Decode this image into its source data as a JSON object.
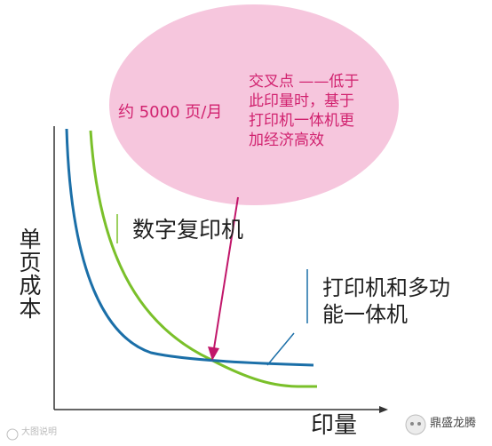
{
  "annotation": {
    "volume_label": "约 5000 页/月",
    "crossover_lines": [
      "交叉点 ——低于",
      "此印量时，基于",
      "打印机一体机更",
      "加经济高效"
    ]
  },
  "axes": {
    "y_label": "单页成本",
    "x_label": "印量"
  },
  "series_labels": {
    "copier": "数字复印机",
    "mfp_lines": [
      "打印机和多功",
      "能一体机"
    ]
  },
  "watermark": {
    "left": "大图说明",
    "right": "鼎盛龙腾"
  },
  "colors": {
    "bubble_fill": "#f6c6dd",
    "annotation_text": "#d1226f",
    "arrow": "#c1166a",
    "copier_curve": "#7ac02a",
    "mfp_curve": "#1b6fa8",
    "axis": "#333333"
  }
}
